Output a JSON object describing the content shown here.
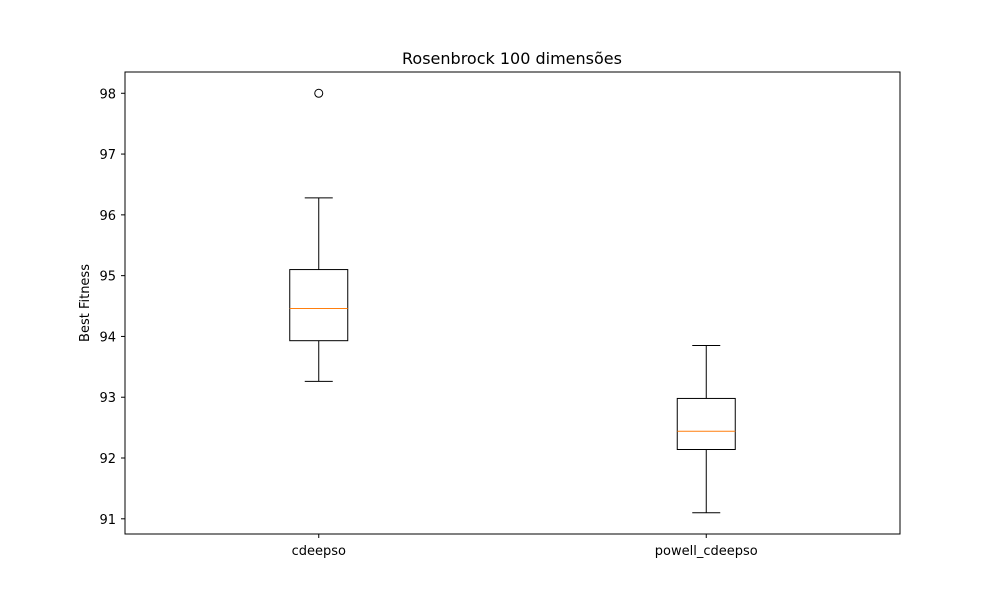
{
  "chart_data": {
    "type": "box",
    "title": "Rosenbrock 100 dimensões",
    "xlabel": "",
    "ylabel": "Best Fitness",
    "ylim": [
      90.75,
      98.35
    ],
    "yticks": [
      91,
      92,
      93,
      94,
      95,
      96,
      97,
      98
    ],
    "categories": [
      "cdeepso",
      "powell_cdeepso"
    ],
    "boxes": [
      {
        "category": "cdeepso",
        "whisker_low": 93.26,
        "q1": 93.93,
        "median": 94.46,
        "q3": 95.1,
        "whisker_high": 96.28,
        "outliers": [
          98.0
        ]
      },
      {
        "category": "powell_cdeepso",
        "whisker_low": 91.1,
        "q1": 92.14,
        "median": 92.44,
        "q3": 92.98,
        "whisker_high": 93.85,
        "outliers": []
      }
    ],
    "colors": {
      "box": "#000000",
      "median": "#ff7f0e",
      "outlier": "#000000"
    }
  }
}
